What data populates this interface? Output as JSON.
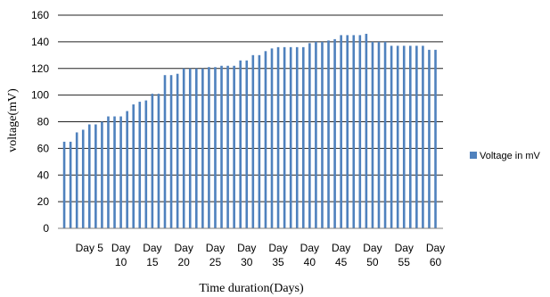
{
  "chart_data": {
    "type": "bar",
    "title": "",
    "xlabel": "Time duration(Days)",
    "ylabel": "voltage(mV)",
    "ylim": [
      0,
      160
    ],
    "yticks": [
      0,
      20,
      40,
      60,
      80,
      100,
      120,
      140,
      160
    ],
    "grid": true,
    "legend_position": "right",
    "bar_color": "#4F81BD",
    "x_tick_labels": [
      {
        "day": 5,
        "lines": [
          "Day 5"
        ]
      },
      {
        "day": 10,
        "lines": [
          "Day",
          "10"
        ]
      },
      {
        "day": 15,
        "lines": [
          "Day",
          "15"
        ]
      },
      {
        "day": 20,
        "lines": [
          "Day",
          "20"
        ]
      },
      {
        "day": 25,
        "lines": [
          "Day",
          "25"
        ]
      },
      {
        "day": 30,
        "lines": [
          "Day",
          "30"
        ]
      },
      {
        "day": 35,
        "lines": [
          "Day",
          "35"
        ]
      },
      {
        "day": 40,
        "lines": [
          "Day",
          "40"
        ]
      },
      {
        "day": 45,
        "lines": [
          "Day",
          "45"
        ]
      },
      {
        "day": 50,
        "lines": [
          "Day",
          "50"
        ]
      },
      {
        "day": 55,
        "lines": [
          "Day",
          "55"
        ]
      },
      {
        "day": 60,
        "lines": [
          "Day",
          "60"
        ]
      }
    ],
    "series": [
      {
        "name": "Voltage in mV",
        "days": [
          1,
          2,
          3,
          4,
          5,
          6,
          7,
          8,
          9,
          10,
          11,
          12,
          13,
          14,
          15,
          16,
          17,
          18,
          19,
          20,
          21,
          22,
          23,
          24,
          25,
          26,
          27,
          28,
          29,
          30,
          31,
          32,
          33,
          34,
          35,
          36,
          37,
          38,
          39,
          40,
          41,
          42,
          43,
          44,
          45,
          46,
          47,
          48,
          49,
          50,
          51,
          52,
          53,
          54,
          55,
          56,
          57,
          58,
          59,
          60
        ],
        "values": [
          65,
          65,
          72,
          74,
          78,
          78,
          80,
          84,
          84,
          84,
          88,
          93,
          95,
          96,
          101,
          101,
          115,
          115,
          116,
          120,
          120,
          120,
          120,
          121,
          121,
          122,
          122,
          122,
          126,
          126,
          130,
          130,
          133,
          135,
          136,
          136,
          136,
          136,
          136,
          139,
          140,
          140,
          141,
          142,
          145,
          145,
          145,
          145,
          146,
          140,
          140,
          140,
          137,
          137,
          137,
          137,
          137,
          137,
          134,
          134
        ]
      }
    ]
  }
}
